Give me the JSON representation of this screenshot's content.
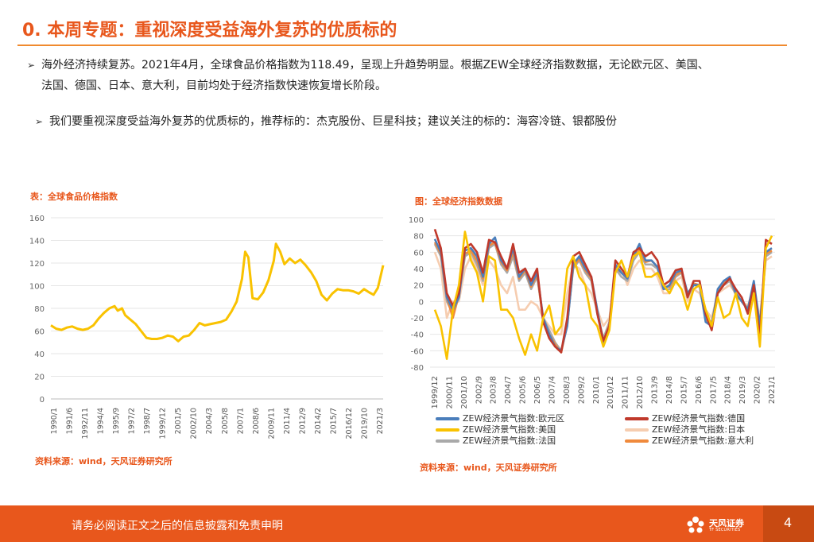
{
  "header": {
    "title": "0. 本周专题：重视深度受益海外复苏的优质标的"
  },
  "bullets": {
    "b1_line1": "海外经济持续复苏。2021年4月，全球食品价格指数为118.49，呈现上升趋势明显。根据ZEW全球经济指数数据，无论欧元区、美国、",
    "b1_line2": "法国、德国、日本、意大利，目前均处于经济指数快速恢复增长阶段。",
    "b2": "我们要重视深度受益海外复苏的优质标的，推荐标的：杰克股份、巨星科技；建议关注的标的：海容冷链、银都股份",
    "arrow": "➢"
  },
  "chart_left": {
    "caption": "表：全球食品价格指数",
    "source": "资料来源：wind，天风证券研究所"
  },
  "chart_right": {
    "caption": "图：全球经济指数数据",
    "source": "资料来源：wind，天风证券研究所"
  },
  "chart_data": [
    {
      "type": "line",
      "color": "#f9c200",
      "ylim": [
        0,
        160
      ],
      "yticks": [
        0,
        20,
        40,
        60,
        80,
        100,
        120,
        140,
        160
      ],
      "xticks": [
        "1990/1",
        "1991/6",
        "1992/11",
        "1994/4",
        "1995/9",
        "1997/2",
        "1998/7",
        "1999/12",
        "2001/5",
        "2002/10",
        "2004/3",
        "2005/8",
        "2007/1",
        "2008/6",
        "2009/11",
        "2011/4",
        "2012/9",
        "2014/2",
        "2015/7",
        "2016/12",
        "2019/10",
        "2021/3"
      ],
      "series": [
        {
          "x": [
            1990.0,
            1990.5,
            1991.0,
            1991.5,
            1992.0,
            1992.5,
            1993.0,
            1993.5,
            1994.0,
            1994.5,
            1995.0,
            1995.5,
            1996.0,
            1996.3,
            1996.7,
            1997.0,
            1997.5,
            1998.0,
            1998.5,
            1999.0,
            1999.5,
            2000.0,
            2000.5,
            2001.0,
            2001.5,
            2002.0,
            2002.5,
            2003.0,
            2003.5,
            2004.0,
            2004.5,
            2005.0,
            2005.5,
            2006.0,
            2006.5,
            2007.0,
            2007.5,
            2008.0,
            2008.3,
            2008.6,
            2009.0,
            2009.5,
            2010.0,
            2010.5,
            2011.0,
            2011.2,
            2011.6,
            2012.0,
            2012.5,
            2013.0,
            2013.5,
            2014.0,
            2014.5,
            2015.0,
            2015.5,
            2016.0,
            2016.5,
            2017.0,
            2017.5,
            2018.0,
            2018.5,
            2019.0,
            2019.5,
            2020.0,
            2020.4,
            2020.8,
            2021.0,
            2021.3
          ],
          "values": [
            65,
            62,
            61,
            63,
            64,
            62,
            61,
            62,
            65,
            71,
            76,
            80,
            82,
            78,
            80,
            74,
            70,
            66,
            60,
            54,
            53,
            53,
            54,
            56,
            55,
            51,
            55,
            56,
            61,
            67,
            65,
            66,
            67,
            68,
            70,
            77,
            86,
            106,
            130,
            125,
            89,
            88,
            94,
            105,
            122,
            137,
            130,
            119,
            124,
            120,
            123,
            118,
            112,
            104,
            92,
            87,
            93,
            97,
            96,
            96,
            95,
            93,
            97,
            94,
            92,
            98,
            106,
            118
          ]
        }
      ]
    },
    {
      "type": "line",
      "ylim": [
        -80,
        100
      ],
      "yticks": [
        -80,
        -60,
        -40,
        -20,
        0,
        20,
        40,
        60,
        80,
        100
      ],
      "xticks": [
        "1999/12",
        "2000/11",
        "2001/10",
        "2002/9",
        "2003/8",
        "2004/7",
        "2005/6",
        "2006/5",
        "2007/4",
        "2008/3",
        "2009/2",
        "2010/1",
        "2010/12",
        "2011/11",
        "2012/10",
        "2013/9",
        "2014/8",
        "2015/7",
        "2016/6",
        "2017/5",
        "2018/4",
        "2019/3",
        "2020/2",
        "2021/1"
      ],
      "series": [
        {
          "name": "ZEW经济景气指数:欧元区",
          "color": "#4a7ebb",
          "values": [
            76,
            60,
            5,
            -10,
            5,
            62,
            65,
            55,
            30,
            70,
            78,
            50,
            40,
            65,
            30,
            40,
            20,
            35,
            -20,
            -40,
            -55,
            -60,
            -30,
            45,
            55,
            40,
            30,
            -10,
            -50,
            -30,
            45,
            35,
            28,
            55,
            70,
            50,
            50,
            42,
            15,
            20,
            35,
            38,
            10,
            20,
            20,
            -25,
            -30,
            15,
            25,
            30,
            10,
            0,
            -10,
            25,
            -30,
            60,
            65
          ]
        },
        {
          "name": "ZEW经济景气指数:德国",
          "color": "#c0392b",
          "values": [
            88,
            65,
            10,
            -5,
            10,
            65,
            70,
            60,
            35,
            75,
            72,
            55,
            40,
            70,
            35,
            40,
            25,
            40,
            -25,
            -45,
            -55,
            -62,
            -20,
            55,
            60,
            45,
            30,
            -15,
            -48,
            -30,
            50,
            40,
            30,
            60,
            65,
            55,
            60,
            50,
            20,
            25,
            38,
            40,
            5,
            25,
            25,
            -15,
            -35,
            10,
            20,
            28,
            15,
            5,
            -15,
            20,
            -45,
            75,
            70
          ]
        },
        {
          "name": "ZEW经济景气指数:美国",
          "color": "#f9c200",
          "values": [
            -10,
            -30,
            -70,
            -10,
            20,
            85,
            50,
            35,
            0,
            55,
            50,
            -10,
            -10,
            -20,
            -45,
            -65,
            -40,
            -60,
            -20,
            -5,
            -40,
            -30,
            40,
            55,
            30,
            20,
            -20,
            -30,
            -55,
            -35,
            35,
            50,
            30,
            55,
            60,
            30,
            30,
            35,
            20,
            10,
            25,
            15,
            -10,
            15,
            20,
            -10,
            -30,
            5,
            -20,
            -15,
            10,
            -20,
            -30,
            10,
            -55,
            65,
            80
          ]
        },
        {
          "name": "ZEW经济景气指数:日本",
          "color": "#f6cdb0",
          "values": [
            60,
            40,
            -20,
            0,
            0,
            40,
            55,
            40,
            20,
            50,
            40,
            20,
            10,
            30,
            -10,
            -10,
            0,
            -5,
            -20,
            -30,
            -40,
            -40,
            10,
            45,
            40,
            20,
            10,
            -10,
            -30,
            -20,
            35,
            40,
            20,
            40,
            50,
            40,
            40,
            30,
            10,
            10,
            25,
            30,
            0,
            15,
            10,
            -10,
            -20,
            10,
            15,
            20,
            10,
            0,
            -5,
            15,
            -20,
            50,
            55
          ]
        },
        {
          "name": "ZEW经济景气指数:法国",
          "color": "#a9a9a9",
          "values": [
            70,
            55,
            0,
            -15,
            5,
            55,
            60,
            45,
            25,
            65,
            70,
            45,
            35,
            55,
            25,
            35,
            15,
            30,
            -20,
            -35,
            -50,
            -60,
            -25,
            40,
            50,
            35,
            25,
            -15,
            -45,
            -25,
            40,
            30,
            25,
            50,
            60,
            45,
            45,
            40,
            15,
            15,
            30,
            35,
            5,
            20,
            18,
            -20,
            -25,
            10,
            20,
            25,
            8,
            0,
            -8,
            20,
            -30,
            55,
            60
          ]
        },
        {
          "name": "ZEW经济景气指数:意大利",
          "color": "#f08a3c",
          "values": [
            72,
            58,
            5,
            -20,
            8,
            58,
            62,
            50,
            28,
            68,
            72,
            48,
            38,
            60,
            28,
            38,
            18,
            32,
            -22,
            -40,
            -52,
            -62,
            -28,
            42,
            52,
            38,
            28,
            -12,
            -50,
            -28,
            42,
            35,
            28,
            55,
            62,
            48,
            50,
            42,
            18,
            18,
            32,
            36,
            8,
            22,
            20,
            -22,
            -28,
            12,
            22,
            28,
            10,
            0,
            -10,
            22,
            -35,
            58,
            62
          ]
        }
      ]
    }
  ],
  "footer": {
    "disclaimer": "请务必阅读正文之后的信息披露和免责申明",
    "brand": "天风证券",
    "brand_en": "TF SECURITIES",
    "page": "4"
  }
}
